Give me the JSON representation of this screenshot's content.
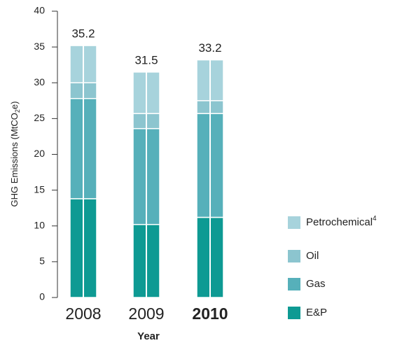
{
  "chart_data": {
    "type": "stacked_bar",
    "xlabel": "Year",
    "ylabel": [
      "GHG Emissions (MtCO",
      "2",
      "e)"
    ],
    "categories": [
      "2008",
      "2009",
      "2010"
    ],
    "highlight": 2,
    "series": [
      {
        "name": "E&P",
        "color": "#0e9a93",
        "values": [
          13.8,
          10.2,
          11.2
        ]
      },
      {
        "name": "Gas",
        "color": "#56b0ba",
        "values": [
          14.0,
          13.4,
          14.5
        ]
      },
      {
        "name": "Oil",
        "color": "#8cc5cf",
        "values": [
          2.2,
          2.1,
          1.8
        ]
      },
      {
        "name": "Petrochemical",
        "note": "4",
        "color": "#a7d3dc",
        "values": [
          5.2,
          5.8,
          5.7
        ]
      }
    ],
    "totals": [
      35.2,
      31.5,
      33.2
    ],
    "ylim": [
      0,
      40
    ],
    "yticks": [
      0,
      5,
      10,
      15,
      20,
      25,
      30,
      35,
      40
    ]
  }
}
